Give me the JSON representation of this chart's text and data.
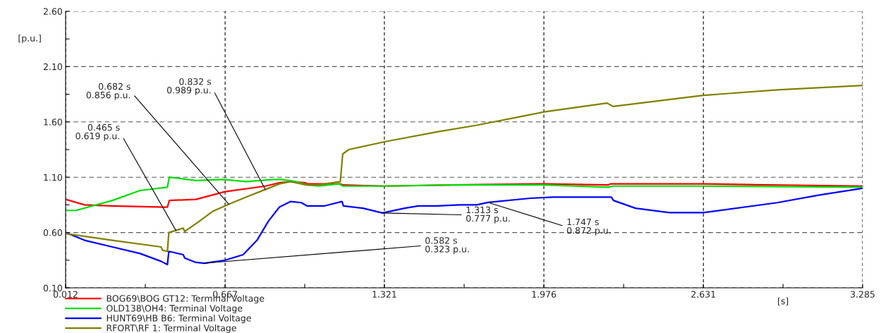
{
  "chart_data": {
    "type": "line",
    "xlabel": "[s]",
    "ylabel": "[p.u.]",
    "xlim": [
      0.012,
      3.285
    ],
    "ylim": [
      0.1,
      2.6
    ],
    "xticks": [
      0.012,
      {
        "value": 0.3395,
        "label": null
      },
      0.667,
      {
        "value": 0.994,
        "label": null
      },
      1.321,
      {
        "value": 1.6485,
        "label": null
      },
      1.976,
      {
        "value": 2.3035,
        "label": null
      },
      2.631,
      {
        "value": 2.958,
        "label": null
      },
      3.285
    ],
    "yticks": [
      {
        "value": 0.1,
        "label": "0.10"
      },
      {
        "value": 0.35,
        "label": null
      },
      {
        "value": 0.6,
        "label": "0.60"
      },
      {
        "value": 0.85,
        "label": null
      },
      {
        "value": 1.1,
        "label": "1.10"
      },
      {
        "value": 1.35,
        "label": null
      },
      {
        "value": 1.6,
        "label": "1.60"
      },
      {
        "value": 1.85,
        "label": null
      },
      {
        "value": 2.1,
        "label": "2.10"
      },
      {
        "value": 2.35,
        "label": null
      },
      {
        "value": 2.6,
        "label": "2.60"
      }
    ],
    "grid": true,
    "legend": "bottom left",
    "line_style": "solid",
    "marker": "none",
    "series": [
      {
        "name": "BOG69\\BOG GT12: Terminal Voltage",
        "color": "#ff0000",
        "x": [
          0.012,
          0.09,
          0.2,
          0.42,
          0.43,
          0.438,
          0.547,
          0.667,
          0.833,
          0.89,
          0.935,
          0.998,
          1.004,
          1.14,
          1.15,
          1.321,
          1.6,
          1.976,
          2.24,
          2.25,
          2.631,
          2.9,
          3.285
        ],
        "values": [
          0.9,
          0.85,
          0.84,
          0.83,
          0.83,
          0.89,
          0.9,
          0.97,
          1.02,
          1.05,
          1.06,
          1.05,
          1.04,
          1.04,
          1.03,
          1.02,
          1.03,
          1.04,
          1.03,
          1.04,
          1.04,
          1.03,
          1.02
        ]
      },
      {
        "name": "OLD138\\OH4: Terminal Voltage",
        "color": "#00e000",
        "x": [
          0.012,
          0.055,
          0.204,
          0.318,
          0.43,
          0.438,
          0.478,
          0.547,
          0.66,
          0.752,
          0.867,
          0.9,
          0.958,
          1.004,
          1.05,
          1.135,
          1.15,
          1.321,
          1.6,
          1.976,
          2.24,
          2.26,
          2.631,
          3.285
        ],
        "values": [
          0.8,
          0.8,
          0.89,
          0.98,
          1.01,
          1.1,
          1.09,
          1.07,
          1.08,
          1.06,
          1.08,
          1.08,
          1.06,
          1.03,
          1.02,
          1.04,
          1.02,
          1.02,
          1.03,
          1.03,
          1.01,
          1.02,
          1.02,
          1.01
        ]
      },
      {
        "name": "HUNT69\\HB B6: Terminal Voltage",
        "color": "#0000ff",
        "x": [
          0.012,
          0.09,
          0.204,
          0.318,
          0.404,
          0.43,
          0.436,
          0.495,
          0.501,
          0.547,
          0.582,
          0.667,
          0.741,
          0.798,
          0.844,
          0.89,
          0.935,
          0.98,
          1.004,
          1.073,
          1.147,
          1.153,
          1.233,
          1.313,
          1.404,
          1.461,
          1.538,
          1.63,
          1.7,
          1.747,
          1.92,
          2.014,
          2.253,
          2.262,
          2.352,
          2.491,
          2.631,
          2.934,
          3.108,
          3.285
        ],
        "values": [
          0.6,
          0.53,
          0.47,
          0.41,
          0.34,
          0.31,
          0.43,
          0.4,
          0.37,
          0.33,
          0.323,
          0.35,
          0.4,
          0.53,
          0.7,
          0.83,
          0.88,
          0.87,
          0.84,
          0.84,
          0.88,
          0.84,
          0.82,
          0.777,
          0.82,
          0.84,
          0.84,
          0.85,
          0.85,
          0.872,
          0.91,
          0.92,
          0.92,
          0.89,
          0.82,
          0.78,
          0.78,
          0.87,
          0.94,
          1.0
        ]
      },
      {
        "name": "RFORT\\RF 1: Terminal Voltage",
        "color": "#808000",
        "x": [
          0.012,
          0.204,
          0.404,
          0.41,
          0.43,
          0.436,
          0.465,
          0.495,
          0.501,
          0.547,
          0.615,
          0.682,
          0.752,
          0.832,
          0.89,
          0.935,
          0.98,
          0.998,
          1.05,
          1.14,
          1.15,
          1.175,
          1.321,
          1.538,
          1.7,
          1.886,
          1.976,
          2.235,
          2.26,
          2.631,
          2.934,
          3.285
        ],
        "values": [
          0.59,
          0.53,
          0.47,
          0.44,
          0.43,
          0.6,
          0.619,
          0.64,
          0.61,
          0.68,
          0.79,
          0.856,
          0.92,
          0.989,
          1.04,
          1.06,
          1.04,
          1.03,
          1.03,
          1.06,
          1.31,
          1.35,
          1.42,
          1.51,
          1.57,
          1.65,
          1.69,
          1.77,
          1.74,
          1.84,
          1.89,
          1.93
        ]
      }
    ],
    "annotations": [
      {
        "text": "0.465 s\n0.619 p.u.",
        "x": 0.465,
        "y": 0.619
      },
      {
        "text": "0.682 s\n0.856 p.u.",
        "x": 0.682,
        "y": 0.856
      },
      {
        "text": "0.832 s\n0.989 p.u.",
        "x": 0.832,
        "y": 0.989
      },
      {
        "text": "0.582 s\n0.323 p.u.",
        "x": 0.582,
        "y": 0.323
      },
      {
        "text": "1.313 s\n0.777 p.u.",
        "x": 1.313,
        "y": 0.777
      },
      {
        "text": "1.747 s\n0.872 p.u.",
        "x": 1.747,
        "y": 0.872
      }
    ]
  }
}
